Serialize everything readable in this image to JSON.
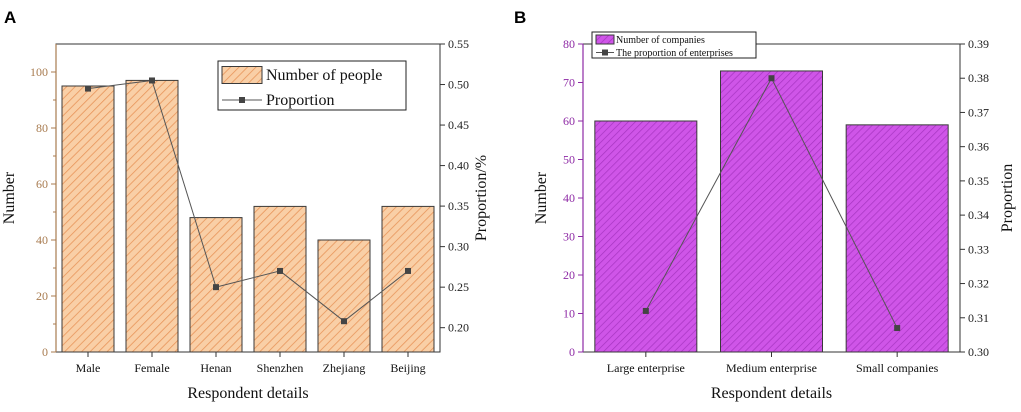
{
  "colors": {
    "bar_a": "#f9cfa6",
    "bar_a_hatch": "#e8955a",
    "axis_left_a": "#a87b4f",
    "bar_b": "#cf55e8",
    "bar_b_hatch": "#a634c0",
    "axis_left_b": "#8e2aa5",
    "line": "#555555",
    "marker": "#444444",
    "frame": "#333333"
  },
  "chart_data": [
    {
      "panel": "A",
      "type": "bar",
      "categories": [
        "Male",
        "Female",
        "Henan",
        "Shenzhen",
        "Zhejiang",
        "Beijing"
      ],
      "series": [
        {
          "name": "Number of people",
          "type": "bar",
          "axis": "left",
          "values": [
            95,
            97,
            48,
            52,
            40,
            52
          ]
        },
        {
          "name": "Proportion",
          "type": "line",
          "axis": "right",
          "values": [
            0.495,
            0.505,
            0.25,
            0.27,
            0.208,
            0.27
          ]
        }
      ],
      "xlabel": "Respondent details",
      "ylabel": "Number",
      "y2label": "Proportion/%",
      "ylim": [
        0,
        110
      ],
      "yticks": [
        0,
        20,
        40,
        60,
        80,
        100
      ],
      "y2lim": [
        0.17,
        0.55
      ],
      "y2ticks": [
        0.2,
        0.25,
        0.3,
        0.35,
        0.4,
        0.45,
        0.5,
        0.55
      ],
      "legend_position": "top-right"
    },
    {
      "panel": "B",
      "type": "bar",
      "categories": [
        "Large enterprise",
        "Medium enterprise",
        "Small companies"
      ],
      "series": [
        {
          "name": "Number of companies",
          "type": "bar",
          "axis": "left",
          "values": [
            60,
            73,
            59
          ]
        },
        {
          "name": "The proportion of enterprises",
          "type": "line",
          "axis": "right",
          "values": [
            0.312,
            0.38,
            0.307
          ]
        }
      ],
      "xlabel": "Respondent details",
      "ylabel": "Number",
      "y2label": "Proportion",
      "ylim": [
        0,
        80
      ],
      "yticks": [
        0,
        10,
        20,
        30,
        40,
        50,
        60,
        70,
        80
      ],
      "y2lim": [
        0.3,
        0.39
      ],
      "y2ticks": [
        0.3,
        0.31,
        0.32,
        0.33,
        0.34,
        0.35,
        0.36,
        0.37,
        0.38,
        0.39
      ],
      "legend_position": "top-left"
    }
  ]
}
